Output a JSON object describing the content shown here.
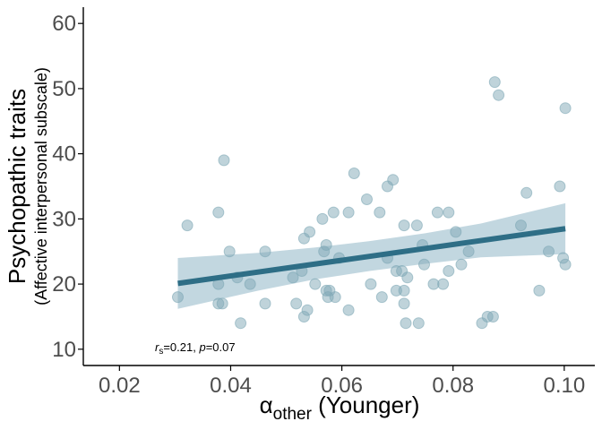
{
  "chart_data": {
    "type": "scatter",
    "title": "",
    "xlabel": {
      "base": "α",
      "subscript": "other",
      "rest": " (Younger)"
    },
    "ylabel": {
      "line1": "Psychopathic traits",
      "line2": "(Affective interpersonal subscale)"
    },
    "xlim": [
      0.0135,
      0.1055
    ],
    "ylim": [
      7.5,
      62.5
    ],
    "xticks": [
      0.02,
      0.04,
      0.06,
      0.08,
      0.1
    ],
    "xtick_labels": [
      "0.02",
      "0.04",
      "0.06",
      "0.08",
      "0.10"
    ],
    "yticks": [
      10,
      20,
      30,
      40,
      50,
      60
    ],
    "ytick_labels": [
      "10",
      "20",
      "30",
      "40",
      "50",
      "60"
    ],
    "grid": false,
    "annotation": {
      "r": "r",
      "r_sub": "s",
      "r_val": "=0.21, ",
      "p": "p",
      "p_val": "=0.07"
    },
    "colors": {
      "points": "#7fa8b6",
      "fit": "#2e6e86",
      "ci": "#b7d0da"
    },
    "fit": {
      "x": [
        0.0305,
        0.1002
      ],
      "y": [
        20.1,
        28.5
      ]
    },
    "ci_band": {
      "x": [
        0.0305,
        0.045,
        0.055,
        0.065,
        0.075,
        0.085,
        0.1002
      ],
      "upper": [
        24.0,
        24.8,
        25.6,
        26.6,
        27.8,
        29.3,
        32.4
      ],
      "lower": [
        16.2,
        19.0,
        20.7,
        22.0,
        23.1,
        24.1,
        24.6
      ]
    },
    "points": [
      {
        "x": 0.0305,
        "y": 18
      },
      {
        "x": 0.0322,
        "y": 29
      },
      {
        "x": 0.0378,
        "y": 31
      },
      {
        "x": 0.0378,
        "y": 20
      },
      {
        "x": 0.0378,
        "y": 17
      },
      {
        "x": 0.0385,
        "y": 17
      },
      {
        "x": 0.0388,
        "y": 39
      },
      {
        "x": 0.0398,
        "y": 25
      },
      {
        "x": 0.0412,
        "y": 21
      },
      {
        "x": 0.0418,
        "y": 14
      },
      {
        "x": 0.0435,
        "y": 20
      },
      {
        "x": 0.0462,
        "y": 25
      },
      {
        "x": 0.0462,
        "y": 17
      },
      {
        "x": 0.0512,
        "y": 21
      },
      {
        "x": 0.0518,
        "y": 17
      },
      {
        "x": 0.0528,
        "y": 22
      },
      {
        "x": 0.0532,
        "y": 27
      },
      {
        "x": 0.0532,
        "y": 15
      },
      {
        "x": 0.0538,
        "y": 16
      },
      {
        "x": 0.0542,
        "y": 28
      },
      {
        "x": 0.0552,
        "y": 20
      },
      {
        "x": 0.0565,
        "y": 30
      },
      {
        "x": 0.0568,
        "y": 25
      },
      {
        "x": 0.0572,
        "y": 26
      },
      {
        "x": 0.0572,
        "y": 19
      },
      {
        "x": 0.0575,
        "y": 18
      },
      {
        "x": 0.0578,
        "y": 19
      },
      {
        "x": 0.0585,
        "y": 31
      },
      {
        "x": 0.0588,
        "y": 18
      },
      {
        "x": 0.0595,
        "y": 24
      },
      {
        "x": 0.0612,
        "y": 31
      },
      {
        "x": 0.0612,
        "y": 16
      },
      {
        "x": 0.0622,
        "y": 37
      },
      {
        "x": 0.0645,
        "y": 33
      },
      {
        "x": 0.0652,
        "y": 20
      },
      {
        "x": 0.0668,
        "y": 31
      },
      {
        "x": 0.0672,
        "y": 18
      },
      {
        "x": 0.0682,
        "y": 35
      },
      {
        "x": 0.0682,
        "y": 24
      },
      {
        "x": 0.0692,
        "y": 36
      },
      {
        "x": 0.0698,
        "y": 22
      },
      {
        "x": 0.0698,
        "y": 19
      },
      {
        "x": 0.0708,
        "y": 22
      },
      {
        "x": 0.0712,
        "y": 29
      },
      {
        "x": 0.0712,
        "y": 17
      },
      {
        "x": 0.0712,
        "y": 19
      },
      {
        "x": 0.0715,
        "y": 14
      },
      {
        "x": 0.0718,
        "y": 21
      },
      {
        "x": 0.0735,
        "y": 29
      },
      {
        "x": 0.0738,
        "y": 14
      },
      {
        "x": 0.0745,
        "y": 26
      },
      {
        "x": 0.0748,
        "y": 23
      },
      {
        "x": 0.0765,
        "y": 20
      },
      {
        "x": 0.0772,
        "y": 31
      },
      {
        "x": 0.0782,
        "y": 20
      },
      {
        "x": 0.0792,
        "y": 22
      },
      {
        "x": 0.0792,
        "y": 31
      },
      {
        "x": 0.0805,
        "y": 28
      },
      {
        "x": 0.0815,
        "y": 23
      },
      {
        "x": 0.0828,
        "y": 25
      },
      {
        "x": 0.0852,
        "y": 14
      },
      {
        "x": 0.0862,
        "y": 15
      },
      {
        "x": 0.0872,
        "y": 15
      },
      {
        "x": 0.0875,
        "y": 51
      },
      {
        "x": 0.0882,
        "y": 49
      },
      {
        "x": 0.0922,
        "y": 29
      },
      {
        "x": 0.0932,
        "y": 34
      },
      {
        "x": 0.0955,
        "y": 19
      },
      {
        "x": 0.0972,
        "y": 25
      },
      {
        "x": 0.0992,
        "y": 35
      },
      {
        "x": 0.0998,
        "y": 24
      },
      {
        "x": 0.1002,
        "y": 47
      },
      {
        "x": 0.1002,
        "y": 23
      }
    ]
  }
}
